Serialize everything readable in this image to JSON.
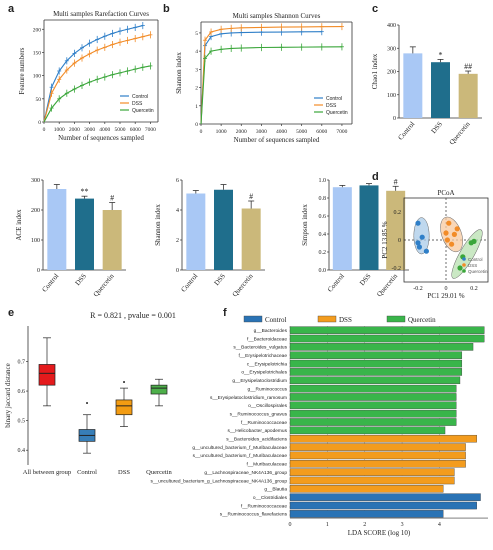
{
  "chart_data": [
    {
      "panel": "a",
      "type": "line",
      "title": "Multi samples Rarefaction Curves",
      "xlabel": "Number of sequences sampled",
      "ylabel": "Feature numbers",
      "xlim": [
        0,
        7500
      ],
      "ylim": [
        0,
        220
      ],
      "xticks": [
        0,
        1000,
        2000,
        3000,
        4000,
        5000,
        6000,
        7000
      ],
      "yticks": [
        0,
        50,
        100,
        150,
        200
      ],
      "legend": "bottom-right",
      "x": [
        0,
        500,
        1000,
        1500,
        2000,
        2500,
        3000,
        3500,
        4000,
        4500,
        5000,
        5500,
        6000,
        6500,
        7000
      ],
      "series": [
        {
          "name": "Control",
          "color": "#2f7fc8",
          "values": [
            0,
            75,
            110,
            132,
            148,
            160,
            170,
            178,
            185,
            191,
            196,
            200,
            204,
            208,
            null
          ]
        },
        {
          "name": "DSS",
          "color": "#f28c28",
          "values": [
            0,
            62,
            92,
            112,
            127,
            138,
            147,
            155,
            161,
            167,
            172,
            176,
            180,
            184,
            188
          ]
        },
        {
          "name": "Quercetin",
          "color": "#3aa63a",
          "values": [
            0,
            30,
            50,
            62,
            71,
            79,
            86,
            92,
            97,
            102,
            106,
            110,
            114,
            118,
            121
          ]
        }
      ]
    },
    {
      "panel": "b",
      "type": "line",
      "title": "Multi samples Shannon Curves",
      "xlabel": "Number of sequences sampled",
      "ylabel": "Shannon index",
      "xlim": [
        0,
        7500
      ],
      "ylim": [
        0,
        5.6
      ],
      "xticks": [
        0,
        1000,
        2000,
        3000,
        4000,
        5000,
        6000,
        7000
      ],
      "yticks": [
        0,
        1,
        2,
        3,
        4,
        5
      ],
      "legend": "bottom-right",
      "x": [
        0,
        200,
        500,
        1000,
        1500,
        2000,
        3000,
        4000,
        5000,
        6000,
        7000
      ],
      "series": [
        {
          "name": "Control",
          "color": "#2f7fc8",
          "values": [
            0,
            4.3,
            4.8,
            4.95,
            5.0,
            5.02,
            5.04,
            5.05,
            5.06,
            5.07,
            null
          ]
        },
        {
          "name": "DSS",
          "color": "#f28c28",
          "values": [
            0,
            4.6,
            5.05,
            5.2,
            5.25,
            5.28,
            5.3,
            5.32,
            5.33,
            5.34,
            5.35
          ]
        },
        {
          "name": "Quercetin",
          "color": "#3aa63a",
          "values": [
            0,
            3.6,
            4.0,
            4.1,
            4.15,
            4.17,
            4.2,
            4.21,
            4.22,
            4.23,
            4.24
          ]
        }
      ]
    },
    {
      "panel": "c",
      "type": "bar",
      "ylabel": "Chao1 index",
      "categories": [
        "Control",
        "DSS",
        "Quercetin"
      ],
      "values": [
        278,
        240,
        190
      ],
      "errors": [
        28,
        12,
        12
      ],
      "marks": [
        "",
        "*",
        "##"
      ],
      "colors": [
        "#a9c8f5",
        "#1f6e8c",
        "#cbb87a"
      ],
      "ylim": [
        0,
        400
      ],
      "yticks": [
        0,
        100,
        200,
        300,
        400
      ]
    },
    {
      "panel": "ace",
      "type": "bar",
      "ylabel": "ACE index",
      "categories": [
        "Control",
        "DSS",
        "Quercetin"
      ],
      "values": [
        270,
        238,
        200
      ],
      "errors": [
        15,
        8,
        25
      ],
      "marks": [
        "",
        "**",
        "#"
      ],
      "colors": [
        "#a9c8f5",
        "#1f6e8c",
        "#cbb87a"
      ],
      "ylim": [
        0,
        300
      ],
      "yticks": [
        0,
        100,
        200,
        300
      ]
    },
    {
      "panel": "shannon",
      "type": "bar",
      "ylabel": "Shannon index",
      "categories": [
        "Control",
        "DSS",
        "Quercetin"
      ],
      "values": [
        5.1,
        5.35,
        4.1
      ],
      "errors": [
        0.2,
        0.35,
        0.5
      ],
      "marks": [
        "",
        "",
        "#"
      ],
      "colors": [
        "#a9c8f5",
        "#1f6e8c",
        "#cbb87a"
      ],
      "ylim": [
        0,
        6
      ],
      "yticks": [
        0,
        2,
        4,
        6
      ]
    },
    {
      "panel": "simpson",
      "type": "bar",
      "ylabel": "Simpson index",
      "categories": [
        "Control",
        "DSS",
        "Quercetin"
      ],
      "values": [
        0.92,
        0.94,
        0.88
      ],
      "errors": [
        0.02,
        0.02,
        0.05
      ],
      "marks": [
        "",
        "",
        "#"
      ],
      "colors": [
        "#a9c8f5",
        "#1f6e8c",
        "#cbb87a"
      ],
      "ylim": [
        0,
        1.0
      ],
      "yticks": [
        0.0,
        0.2,
        0.4,
        0.6,
        0.8,
        1.0
      ]
    },
    {
      "panel": "d",
      "type": "scatter",
      "title": "PCoA",
      "xlabel": "PC1 29.01 %",
      "ylabel": "PC2 13.85 %",
      "xlim": [
        -0.3,
        0.3
      ],
      "ylim": [
        -0.3,
        0.3
      ],
      "xticks": [
        -0.2,
        0,
        0.2
      ],
      "yticks": [
        -0.2,
        0,
        0.2
      ],
      "legend": "bottom-right",
      "series": [
        {
          "name": "Control",
          "color": "#2f7fc8",
          "points": [
            [
              -0.2,
              0.12
            ],
            [
              -0.17,
              0.02
            ],
            [
              -0.2,
              -0.02
            ],
            [
              -0.14,
              -0.08
            ],
            [
              -0.19,
              -0.05
            ]
          ]
        },
        {
          "name": "DSS",
          "color": "#f28c28",
          "points": [
            [
              0.02,
              0.12
            ],
            [
              0.0,
              0.05
            ],
            [
              0.06,
              0.04
            ],
            [
              0.01,
              0.0
            ],
            [
              0.08,
              0.08
            ],
            [
              0.04,
              -0.03
            ]
          ]
        },
        {
          "name": "Quercetin",
          "color": "#3aa63a",
          "points": [
            [
              0.1,
              -0.2
            ],
            [
              0.18,
              -0.02
            ],
            [
              0.12,
              -0.12
            ],
            [
              0.2,
              -0.01
            ]
          ]
        }
      ]
    },
    {
      "panel": "e",
      "type": "box",
      "title": "R = 0.821 , pvalue = 0.001",
      "ylabel": "binary jaccard distance",
      "categories": [
        "All between group",
        "Control",
        "DSS",
        "Quercetin"
      ],
      "colors": [
        "#e41a1c",
        "#377eb8",
        "#f39c12",
        "#4daf4a"
      ],
      "ylim": [
        0.35,
        0.82
      ],
      "yticks": [
        0.4,
        0.5,
        0.6,
        0.7
      ],
      "boxes": [
        {
          "min": 0.55,
          "q1": 0.62,
          "median": 0.66,
          "q3": 0.69,
          "max": 0.78
        },
        {
          "min": 0.39,
          "q1": 0.43,
          "median": 0.45,
          "q3": 0.47,
          "max": 0.52
        },
        {
          "min": 0.48,
          "q1": 0.52,
          "median": 0.55,
          "q3": 0.57,
          "max": 0.61
        },
        {
          "min": 0.55,
          "q1": 0.59,
          "median": 0.61,
          "q3": 0.62,
          "max": 0.64
        }
      ],
      "outliers": [
        [
          1,
          0.56
        ],
        [
          2,
          0.63
        ]
      ]
    },
    {
      "panel": "f",
      "type": "bar",
      "orientation": "horizontal",
      "xlabel": "LDA SCORE (log 10)",
      "xlim": [
        0,
        5.3
      ],
      "xticks": [
        0,
        1,
        2,
        3,
        4
      ],
      "legend_entries": [
        {
          "name": "Control",
          "color": "#2a73b5"
        },
        {
          "name": "DSS",
          "color": "#f39c1e"
        },
        {
          "name": "Quercetin",
          "color": "#39b54a"
        }
      ],
      "features": [
        {
          "label": "g__Bacteroides",
          "group": "Quercetin",
          "value": 5.2
        },
        {
          "label": "f__Bacteroidaceae",
          "group": "Quercetin",
          "value": 5.2
        },
        {
          "label": "s__Bacteroides_vulgatus",
          "group": "Quercetin",
          "value": 4.9
        },
        {
          "label": "f__Erysipelotrichaceae",
          "group": "Quercetin",
          "value": 4.6
        },
        {
          "label": "c__Erysipelotrichia",
          "group": "Quercetin",
          "value": 4.6
        },
        {
          "label": "o__Erysipelotrichales",
          "group": "Quercetin",
          "value": 4.6
        },
        {
          "label": "g__Erysipelatoclostridium",
          "group": "Quercetin",
          "value": 4.55
        },
        {
          "label": "g__Ruminococcus",
          "group": "Quercetin",
          "value": 4.45
        },
        {
          "label": "s__Erysipelatoclostridium_ramosum",
          "group": "Quercetin",
          "value": 4.45
        },
        {
          "label": "o__Oscillospirales",
          "group": "Quercetin",
          "value": 4.45
        },
        {
          "label": "s__Ruminococcus_gnavus",
          "group": "Quercetin",
          "value": 4.45
        },
        {
          "label": "f__Ruminococcaceae",
          "group": "Quercetin",
          "value": 4.45
        },
        {
          "label": "s__Helicobacter_apodemus",
          "group": "Quercetin",
          "value": 4.15
        },
        {
          "label": "s__Bacteroides_acidifaciens",
          "group": "DSS",
          "value": 5.0
        },
        {
          "label": "g__uncultured_bacterium_f_Muribaculaceae",
          "group": "DSS",
          "value": 4.7
        },
        {
          "label": "s__uncultured_bacterium_f_Muribaculaceae",
          "group": "DSS",
          "value": 4.7
        },
        {
          "label": "f__Muribaculaceae",
          "group": "DSS",
          "value": 4.7
        },
        {
          "label": "g__Lachnospiraceae_NK4A136_group",
          "group": "DSS",
          "value": 4.4
        },
        {
          "label": "s__uncultured_bacterium_g_Lachnospiraceae_NK4A136_group",
          "group": "DSS",
          "value": 4.4
        },
        {
          "label": "g__Blautia",
          "group": "DSS",
          "value": 4.1
        },
        {
          "label": "o__Clostridiales",
          "group": "Control",
          "value": 5.1
        },
        {
          "label": "f__Ruminococcaceae",
          "group": "Control",
          "value": 5.0
        },
        {
          "label": "s__Ruminococcus_flavefaciens",
          "group": "Control",
          "value": 4.1
        }
      ]
    }
  ],
  "panel_letters": [
    "a",
    "b",
    "c",
    "d",
    "e",
    "f"
  ]
}
